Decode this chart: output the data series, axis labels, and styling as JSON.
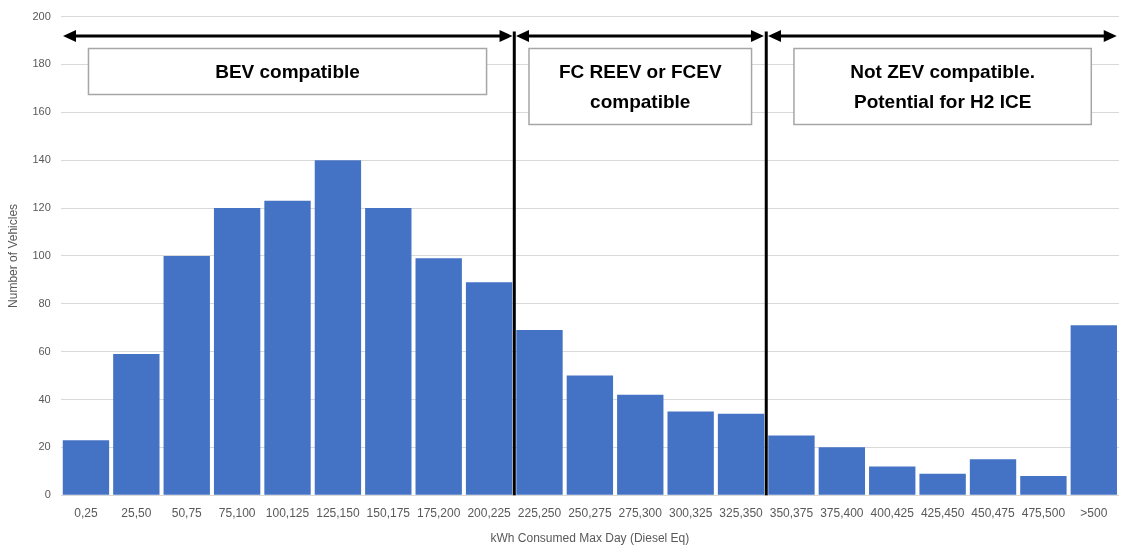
{
  "chart_data": {
    "type": "bar",
    "xlabel": "kWh Consumed Max Day (Diesel Eq)",
    "ylabel": "Number of Vehicles",
    "categories": [
      "0,25",
      "25,50",
      "50,75",
      "75,100",
      "100,125",
      "125,150",
      "150,175",
      "175,200",
      "200,225",
      "225,250",
      "250,275",
      "275,300",
      "300,325",
      "325,350",
      "350,375",
      "375,400",
      "400,425",
      "425,450",
      "450,475",
      "475,500",
      ">500"
    ],
    "values": [
      23,
      59,
      100,
      120,
      123,
      140,
      120,
      99,
      89,
      69,
      50,
      42,
      35,
      34,
      25,
      20,
      12,
      9,
      15,
      8,
      71
    ],
    "color": "#4472c4",
    "ylim": [
      0,
      200
    ],
    "yticks": [
      0,
      20,
      40,
      60,
      80,
      100,
      120,
      140,
      160,
      180,
      200
    ],
    "grid": "y",
    "bands": [
      {
        "axis": "x",
        "from": "0,25",
        "to": "200,225",
        "label": "BEV compatible",
        "color": "#ffffff"
      },
      {
        "axis": "x",
        "from": "225,250",
        "to": "325,350",
        "label": "FC REEV or FCEV compatible",
        "color": "#ffffff"
      },
      {
        "axis": "x",
        "from": "350,375",
        "to": ">500",
        "label": "Not ZEV compatible. Potential for H2 ICE",
        "color": "#ffffff"
      }
    ]
  }
}
